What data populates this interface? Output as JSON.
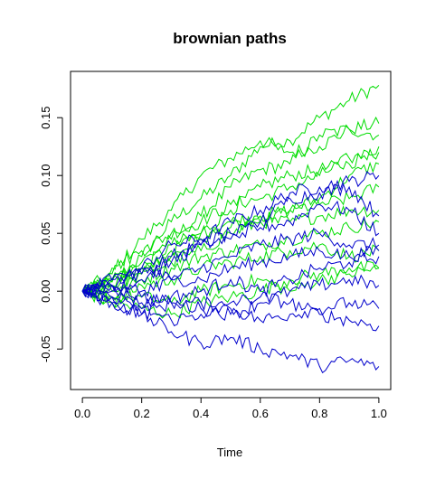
{
  "chart_data": {
    "type": "line",
    "title": "brownian paths",
    "xlabel": "Time",
    "ylabel": "",
    "xlim": [
      -0.04,
      1.04
    ],
    "ylim": [
      -0.085,
      0.19
    ],
    "x_ticks": [
      0.0,
      0.2,
      0.4,
      0.6,
      0.8,
      1.0
    ],
    "x_tick_labels": [
      "0.0",
      "0.2",
      "0.4",
      "0.6",
      "0.8",
      "1.0"
    ],
    "y_ticks": [
      -0.05,
      0.0,
      0.05,
      0.1,
      0.15
    ],
    "y_tick_labels": [
      "-0.05",
      "0.00",
      "0.05",
      "0.10",
      "0.15"
    ],
    "grid": false,
    "legend": "none",
    "colors": {
      "drift_paths": "#00dd00",
      "no_drift_paths": "#0000cc"
    },
    "series": [
      {
        "group": "drift_paths",
        "x": [
          0,
          0.1,
          0.2,
          0.3,
          0.4,
          0.5,
          0.6,
          0.7,
          0.8,
          0.9,
          1.0
        ],
        "y": [
          0,
          0.008,
          0.03,
          0.06,
          0.08,
          0.1,
          0.125,
          0.13,
          0.15,
          0.165,
          0.178
        ]
      },
      {
        "group": "drift_paths",
        "x": [
          0,
          0.1,
          0.2,
          0.3,
          0.4,
          0.5,
          0.6,
          0.7,
          0.8,
          0.9,
          1.0
        ],
        "y": [
          0,
          0.015,
          0.045,
          0.07,
          0.1,
          0.115,
          0.13,
          0.12,
          0.125,
          0.14,
          0.145
        ]
      },
      {
        "group": "drift_paths",
        "x": [
          0,
          0.1,
          0.2,
          0.3,
          0.4,
          0.5,
          0.6,
          0.7,
          0.8,
          0.9,
          1.0
        ],
        "y": [
          0,
          0.01,
          0.025,
          0.045,
          0.065,
          0.09,
          0.105,
          0.11,
          0.135,
          0.14,
          0.135
        ]
      },
      {
        "group": "drift_paths",
        "x": [
          0,
          0.1,
          0.2,
          0.3,
          0.4,
          0.5,
          0.6,
          0.7,
          0.8,
          0.9,
          1.0
        ],
        "y": [
          0,
          0.005,
          0.02,
          0.04,
          0.05,
          0.07,
          0.09,
          0.1,
          0.105,
          0.11,
          0.125
        ]
      },
      {
        "group": "drift_paths",
        "x": [
          0,
          0.1,
          0.2,
          0.3,
          0.4,
          0.5,
          0.6,
          0.7,
          0.8,
          0.9,
          1.0
        ],
        "y": [
          0,
          0.02,
          0.035,
          0.05,
          0.06,
          0.075,
          0.08,
          0.09,
          0.1,
          0.115,
          0.12
        ]
      },
      {
        "group": "drift_paths",
        "x": [
          0,
          0.1,
          0.2,
          0.3,
          0.4,
          0.5,
          0.6,
          0.7,
          0.8,
          0.9,
          1.0
        ],
        "y": [
          0,
          0.0,
          0.015,
          0.035,
          0.05,
          0.06,
          0.065,
          0.07,
          0.08,
          0.1,
          0.11
        ]
      },
      {
        "group": "drift_paths",
        "x": [
          0,
          0.1,
          0.2,
          0.3,
          0.4,
          0.5,
          0.6,
          0.7,
          0.8,
          0.9,
          1.0
        ],
        "y": [
          0,
          0.01,
          0.02,
          0.03,
          0.045,
          0.055,
          0.06,
          0.07,
          0.075,
          0.08,
          0.09
        ]
      },
      {
        "group": "drift_paths",
        "x": [
          0,
          0.1,
          0.2,
          0.3,
          0.4,
          0.5,
          0.6,
          0.7,
          0.8,
          0.9,
          1.0
        ],
        "y": [
          0,
          0.005,
          0.015,
          0.025,
          0.035,
          0.05,
          0.06,
          0.06,
          0.065,
          0.07,
          0.07
        ]
      },
      {
        "group": "drift_paths",
        "x": [
          0,
          0.1,
          0.2,
          0.3,
          0.4,
          0.5,
          0.6,
          0.7,
          0.8,
          0.9,
          1.0
        ],
        "y": [
          0,
          -0.005,
          0.01,
          0.02,
          0.03,
          0.035,
          0.04,
          0.045,
          0.05,
          0.055,
          0.06
        ]
      },
      {
        "group": "drift_paths",
        "x": [
          0,
          0.1,
          0.2,
          0.3,
          0.4,
          0.5,
          0.6,
          0.7,
          0.8,
          0.9,
          1.0
        ],
        "y": [
          0,
          -0.01,
          0.005,
          0.01,
          0.02,
          0.025,
          0.03,
          0.035,
          0.04,
          0.03,
          0.035
        ]
      },
      {
        "group": "drift_paths",
        "x": [
          0,
          0.1,
          0.2,
          0.3,
          0.4,
          0.5,
          0.6,
          0.7,
          0.8,
          0.9,
          1.0
        ],
        "y": [
          0,
          -0.005,
          -0.005,
          -0.01,
          0.0,
          0.005,
          0.01,
          0.0,
          0.01,
          0.015,
          0.02
        ]
      },
      {
        "group": "drift_paths",
        "x": [
          0,
          0.1,
          0.2,
          0.3,
          0.4,
          0.5,
          0.6,
          0.7,
          0.8,
          0.9,
          1.0
        ],
        "y": [
          0,
          -0.01,
          -0.015,
          -0.02,
          -0.01,
          -0.005,
          0.0,
          0.01,
          0.015,
          0.02,
          0.02
        ]
      },
      {
        "group": "no_drift_paths",
        "x": [
          0,
          0.1,
          0.2,
          0.3,
          0.4,
          0.5,
          0.6,
          0.7,
          0.8,
          0.9,
          1.0
        ],
        "y": [
          0,
          0.005,
          0.02,
          0.04,
          0.045,
          0.06,
          0.07,
          0.085,
          0.09,
          0.095,
          0.1
        ]
      },
      {
        "group": "no_drift_paths",
        "x": [
          0,
          0.1,
          0.2,
          0.3,
          0.4,
          0.5,
          0.6,
          0.7,
          0.8,
          0.9,
          1.0
        ],
        "y": [
          0,
          0.01,
          0.015,
          0.03,
          0.04,
          0.045,
          0.06,
          0.08,
          0.085,
          0.09,
          0.065
        ]
      },
      {
        "group": "no_drift_paths",
        "x": [
          0,
          0.1,
          0.2,
          0.3,
          0.4,
          0.5,
          0.6,
          0.7,
          0.8,
          0.9,
          1.0
        ],
        "y": [
          0,
          0.0,
          0.01,
          0.025,
          0.04,
          0.05,
          0.055,
          0.06,
          0.075,
          0.07,
          0.05
        ]
      },
      {
        "group": "no_drift_paths",
        "x": [
          0,
          0.1,
          0.2,
          0.3,
          0.4,
          0.5,
          0.6,
          0.7,
          0.8,
          0.9,
          1.0
        ],
        "y": [
          0,
          0.005,
          0.0,
          0.01,
          0.02,
          0.03,
          0.04,
          0.045,
          0.05,
          0.04,
          0.04
        ]
      },
      {
        "group": "no_drift_paths",
        "x": [
          0,
          0.1,
          0.2,
          0.3,
          0.4,
          0.5,
          0.6,
          0.7,
          0.8,
          0.9,
          1.0
        ],
        "y": [
          0,
          0.01,
          0.02,
          0.01,
          0.01,
          0.02,
          0.025,
          0.03,
          0.035,
          0.03,
          0.035
        ]
      },
      {
        "group": "no_drift_paths",
        "x": [
          0,
          0.1,
          0.2,
          0.3,
          0.4,
          0.5,
          0.6,
          0.7,
          0.8,
          0.9,
          1.0
        ],
        "y": [
          0,
          -0.005,
          -0.01,
          -0.005,
          0.0,
          0.01,
          0.0,
          0.01,
          0.02,
          0.025,
          0.03
        ]
      },
      {
        "group": "no_drift_paths",
        "x": [
          0,
          0.1,
          0.2,
          0.3,
          0.4,
          0.5,
          0.6,
          0.7,
          0.8,
          0.9,
          1.0
        ],
        "y": [
          0,
          0.005,
          -0.005,
          -0.01,
          -0.015,
          -0.02,
          -0.01,
          0.0,
          0.005,
          0.01,
          0.005
        ]
      },
      {
        "group": "no_drift_paths",
        "x": [
          0,
          0.1,
          0.2,
          0.3,
          0.4,
          0.5,
          0.6,
          0.7,
          0.8,
          0.9,
          1.0
        ],
        "y": [
          0,
          -0.01,
          -0.02,
          -0.01,
          -0.01,
          -0.015,
          -0.025,
          -0.02,
          -0.015,
          -0.01,
          -0.015
        ]
      },
      {
        "group": "no_drift_paths",
        "x": [
          0,
          0.1,
          0.2,
          0.3,
          0.4,
          0.5,
          0.6,
          0.7,
          0.8,
          0.9,
          1.0
        ],
        "y": [
          0,
          -0.005,
          -0.015,
          -0.025,
          -0.02,
          -0.01,
          -0.005,
          -0.01,
          -0.02,
          -0.025,
          -0.03
        ]
      },
      {
        "group": "no_drift_paths",
        "x": [
          0,
          0.1,
          0.2,
          0.3,
          0.4,
          0.5,
          0.6,
          0.7,
          0.8,
          0.9,
          1.0
        ],
        "y": [
          0,
          -0.01,
          -0.02,
          -0.035,
          -0.045,
          -0.04,
          -0.05,
          -0.055,
          -0.065,
          -0.06,
          -0.065
        ]
      }
    ]
  }
}
